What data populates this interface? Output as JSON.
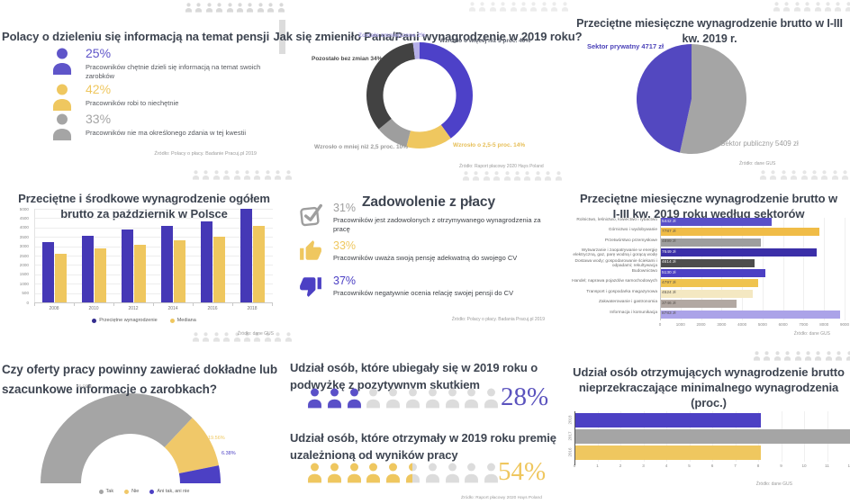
{
  "colors": {
    "purple": "#4C40C4",
    "indigo": "#4538B6",
    "purple_dark": "#3B2FA8",
    "lavender": "#ABA3E8",
    "yellow": "#EFC75F",
    "yellow_deep": "#F0BC47",
    "cream": "#F4E8C2",
    "gray": "#A5A5A5",
    "gray_dark": "#454545",
    "taupe": "#B2A8A2",
    "title": "#3D4450",
    "source": "#9B9B9B"
  },
  "panels": {
    "share_info": {
      "title": "Polacy o dzieleniu się informacją na temat pensji",
      "stats": [
        {
          "value": "25%",
          "text": "Pracowników chętnie dzieli się informacją na temat swoich zarobków",
          "color": "#5F55C9",
          "icon": "person-icon"
        },
        {
          "value": "42%",
          "text": "Pracowników robi to niechętnie",
          "color": "#EFC75F",
          "icon": "person-icon"
        },
        {
          "value": "33%",
          "text": "Pracowników nie ma określonego zdania w tej kwestii",
          "color": "#A5A5A5",
          "icon": "person-icon"
        }
      ],
      "source": "Źródło: Polacy o płacy. Badanie Pracuj.pl 2019"
    },
    "salary_change": {
      "title": "Jak się zmieniło Pana/Pani wynagrodzenie w 2019 roku?",
      "callouts": [
        {
          "text": "Zostało zmniejszone 2%",
          "color": "#A9A2E2"
        },
        {
          "text": "Wzrosło o więcej niż 5 proc.  40%",
          "color": "#565B68"
        },
        {
          "text": "Pozostało bez zmian 34%",
          "color": "#4A4A4A"
        },
        {
          "text": "Wzrosło o mniej niż 2,5 proc.  10%",
          "color": "#9A9A9A"
        },
        {
          "text": "Wzrosło o 2,5-5 proc.  14%",
          "color": "#E6BE56"
        }
      ],
      "source": "Źródło: Raport płacowy 2020 Hays Poland"
    },
    "sector_pie": {
      "title": "Przeciętne miesięczne wynagrodzenie brutto w I-III kw. 2019 r.",
      "label_private": "Sektor prywatny 4717 zł",
      "label_public": "Sektor publiczny 5409 zł",
      "source": "Źródło: dane GUS"
    },
    "avg_median": {
      "title": "Przeciętne i środkowe wynagrodzenie ogółem brutto za październik w Polsce",
      "source": "Źródło: dane GUS"
    },
    "satisfaction": {
      "title": "Zadowolenie z płacy",
      "stats": [
        {
          "value": "31%",
          "text": "Pracowników jest zadowolonych z otrzymywanego wynagrodzenia za pracę",
          "color": "#9E9E9E",
          "icon": "check"
        },
        {
          "value": "33%",
          "text": "Pracowników uważa swoją pensję adekwatną do swojego CV",
          "color": "#EFC75F",
          "icon": "thumb-up"
        },
        {
          "value": "37%",
          "text": "Pracowników negatywnie ocenia relację swojej pensji do CV",
          "color": "#4C40C4",
          "icon": "thumb-down"
        }
      ],
      "source": "Źródło: Polacy o płacy. Badania Pracuj.pl 2019"
    },
    "sectors_bars": {
      "title": "Przeciętne miesięczne wynagrodzenie brutto w I-III kw. 2019 roku według sektorów",
      "source": "Źródło: dane GUS"
    },
    "job_offers": {
      "title": "Czy oferty pracy powinny zawierać dokładne lub szacunkowe informacje o zarobkach?",
      "pcts": [
        {
          "text": "74.06%",
          "color": "#B5B5B5"
        },
        {
          "text": "19.56%",
          "color": "#EFC75F"
        },
        {
          "text": "6.38%",
          "color": "#4C40C4"
        }
      ],
      "legend": [
        {
          "label": "Tak",
          "color": "#A5A5A5"
        },
        {
          "label": "Nie",
          "color": "#F0C869"
        },
        {
          "label": "Ani tak, ani nie",
          "color": "#4C40C4"
        }
      ]
    },
    "raise_bonus": {
      "title1": "Udział osób, które ubiegały się w 2019 roku o podwyżkę z pozytywnym skutkiem",
      "value1": "28%",
      "title2": "Udział osób, które otrzymały w 2019 roku premię uzależnioną od wyników pracy",
      "value2": "54%",
      "source": "Źródło: Raport płacowy 2020 Hays Poland"
    },
    "min_wage": {
      "title": "Udział osób otrzymujących wynagrodzenie brutto nieprzekraczające minimalnego wynagrodzenia (proc.)",
      "source": "Źródło: dane GUS"
    }
  },
  "chart_data": [
    {
      "type": "pie",
      "variant": "donut",
      "title": "Jak się zmieniło Pana/Pani wynagrodzenie w 2019 roku?",
      "unit": "%",
      "segments": [
        {
          "label": "Wzrosło o więcej niż 5 proc.",
          "value": 40,
          "color": "#4D41C8"
        },
        {
          "label": "Wzrosło o 2,5-5 proc.",
          "value": 14,
          "color": "#EFC75F"
        },
        {
          "label": "Wzrosło o mniej niż 2,5 proc.",
          "value": 10,
          "color": "#9E9E9E"
        },
        {
          "label": "Pozostało bez zmian",
          "value": 34,
          "color": "#424242"
        },
        {
          "label": "Zostało zmniejszone",
          "value": 2,
          "color": "#B4AEE8"
        }
      ],
      "source": "Źródło: Raport płacowy 2020 Hays Poland"
    },
    {
      "type": "pie",
      "title": "Przeciętne miesięczne wynagrodzenie brutto w I-III kw. 2019 r.",
      "unit": "zł",
      "segments": [
        {
          "label": "Sektor publiczny",
          "value": 5409,
          "color": "#A5A5A5"
        },
        {
          "label": "Sektor prywatny",
          "value": 4717,
          "color": "#5348C0"
        }
      ],
      "source": "Źródło: dane GUS"
    },
    {
      "type": "bar",
      "title": "Przeciętne i środkowe wynagrodzenie ogółem brutto za październik w Polsce",
      "categories": [
        "2008",
        "2010",
        "2012",
        "2014",
        "2016",
        "2018"
      ],
      "series": [
        {
          "name": "Przeciętne wynagrodzenie",
          "color": "#332C8E",
          "bar_color": "#4538B6",
          "values": [
            3200,
            3550,
            3900,
            4100,
            4350,
            5000
          ]
        },
        {
          "name": "Mediana",
          "color": "#EFC75F",
          "bar_color": "#EFC75F",
          "values": [
            2600,
            2900,
            3100,
            3300,
            3500,
            4100
          ]
        }
      ],
      "ylim": [
        0,
        5000
      ],
      "ytick_step": 500,
      "legend_position": "bottom",
      "grid": true,
      "source": "Źródło: dane GUS"
    },
    {
      "type": "bar",
      "orientation": "horizontal",
      "title": "Przeciętne miesięczne wynagrodzenie brutto w I-III kw. 2019 roku według sektorów",
      "categories": [
        "Rolnictwo, leśnictwo, łowiectwo i rybactwo",
        "Górnictwo i wydobywanie",
        "Przetwórstwo przemysłowe",
        "Wytwarzanie i zaopatrywanie w energię elektryczną, gaz, parę wodną i gorącą wodę",
        "Dostawa wody; gospodarowanie ściekami i odpadami; rekultywacja",
        "Budownictwo",
        "Handel; naprawa pojazdów samochodowych",
        "Transport i gospodarka magazynowa",
        "Zakwaterowanie i gastronomia",
        "Informacja i komunikacja"
      ],
      "values": [
        5442,
        7787,
        4899,
        7649,
        4614,
        5130,
        4797,
        4524,
        3746,
        8783
      ],
      "value_labels": [
        "5442 zł",
        "7787 zł",
        "4899 zł",
        "7649 zł",
        "4614 zł",
        "5130 zł",
        "4797 zł",
        "4524 zł",
        "3746 zł",
        "8783 zł"
      ],
      "colors": [
        "#5A50C8",
        "#F0BC47",
        "#9E9E9E",
        "#3B2FA8",
        "#4D4D4D",
        "#4C40C4",
        "#EFC34F",
        "#F4E8C2",
        "#B2A8A2",
        "#ABA3E8"
      ],
      "label_on_dark": [
        true,
        false,
        false,
        true,
        true,
        true,
        false,
        false,
        false,
        false
      ],
      "xlim": [
        0,
        9000
      ],
      "xtick_step": 1000,
      "grid": true,
      "source": "Źródło: dane GUS"
    },
    {
      "type": "pie",
      "variant": "half-donut-gauge",
      "title": "Czy oferty pracy powinny zawierać dokładne lub szacunkowe informacje o zarobkach?",
      "unit": "%",
      "segments": [
        {
          "label": "Tak",
          "value": 74.06,
          "color": "#A5A5A5"
        },
        {
          "label": "Nie",
          "value": 19.56,
          "color": "#F0C869"
        },
        {
          "label": "Ani tak, ani nie",
          "value": 6.38,
          "color": "#4C40C4"
        }
      ],
      "legend_position": "bottom"
    },
    {
      "type": "pictogram",
      "title": "Udział osób, które ubiegały się w 2019 roku o podwyżkę z pozytywnym skutkiem",
      "value": 28,
      "unit": "%",
      "total_icons": 10,
      "fill_color": "#5A50C8",
      "empty_color": "#DCDCDC",
      "label": "28%"
    },
    {
      "type": "pictogram",
      "title": "Udział osób, które otrzymały w 2019 roku premię uzależnioną od wyników pracy",
      "value": 54,
      "unit": "%",
      "total_icons": 10,
      "fill_color": "#EFC75F",
      "empty_color": "#DCDCDC",
      "label": "54%"
    },
    {
      "type": "bar",
      "orientation": "horizontal",
      "title": "Udział osób otrzymujących wynagrodzenie brutto nieprzekraczające minimalnego wynagrodzenia (proc.)",
      "categories": [
        "2018",
        "2017",
        "2016"
      ],
      "values": [
        8.1,
        12.5,
        8.1
      ],
      "colors": [
        "#4C40C4",
        "#A5A5A5",
        "#EFC75F"
      ],
      "xlim": [
        0,
        12
      ],
      "xtick_step": 1,
      "grid": true,
      "source": "Źródło: dane GUS"
    }
  ]
}
